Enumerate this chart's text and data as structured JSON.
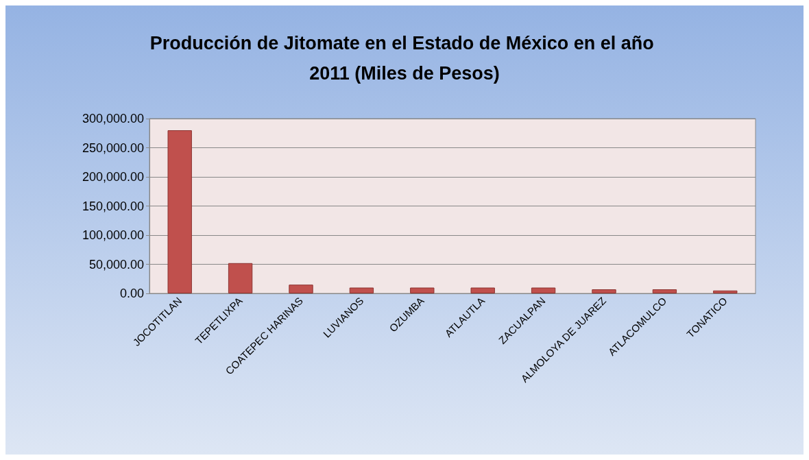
{
  "chart_data": {
    "type": "bar",
    "title": "Producción de Jitomate en el Estado de México en el año 2011 (Miles de Pesos)",
    "categories": [
      "JOCOTITLAN",
      "TEPETLIXPA",
      "COATEPEC HARINAS",
      "LUVIANOS",
      "OZUMBA",
      "ATLAUTLA",
      "ZACUALPAN",
      "ALMOLOYA DE JUAREZ",
      "ATLACOMULCO",
      "TONATICO"
    ],
    "values": [
      280000,
      52000,
      15000,
      10000,
      10000,
      10000,
      10000,
      7000,
      7000,
      5000
    ],
    "color": "#c0504d",
    "ylim": [
      0,
      300000
    ],
    "yticks": [
      {
        "value": 0,
        "label": "0.00"
      },
      {
        "value": 50000,
        "label": "50,000.00"
      },
      {
        "value": 100000,
        "label": "100,000.00"
      },
      {
        "value": 150000,
        "label": "150,000.00"
      },
      {
        "value": 200000,
        "label": "200,000.00"
      },
      {
        "value": 250000,
        "label": "250,000.00"
      },
      {
        "value": 300000,
        "label": "300,000.00"
      }
    ],
    "grid": "y"
  }
}
